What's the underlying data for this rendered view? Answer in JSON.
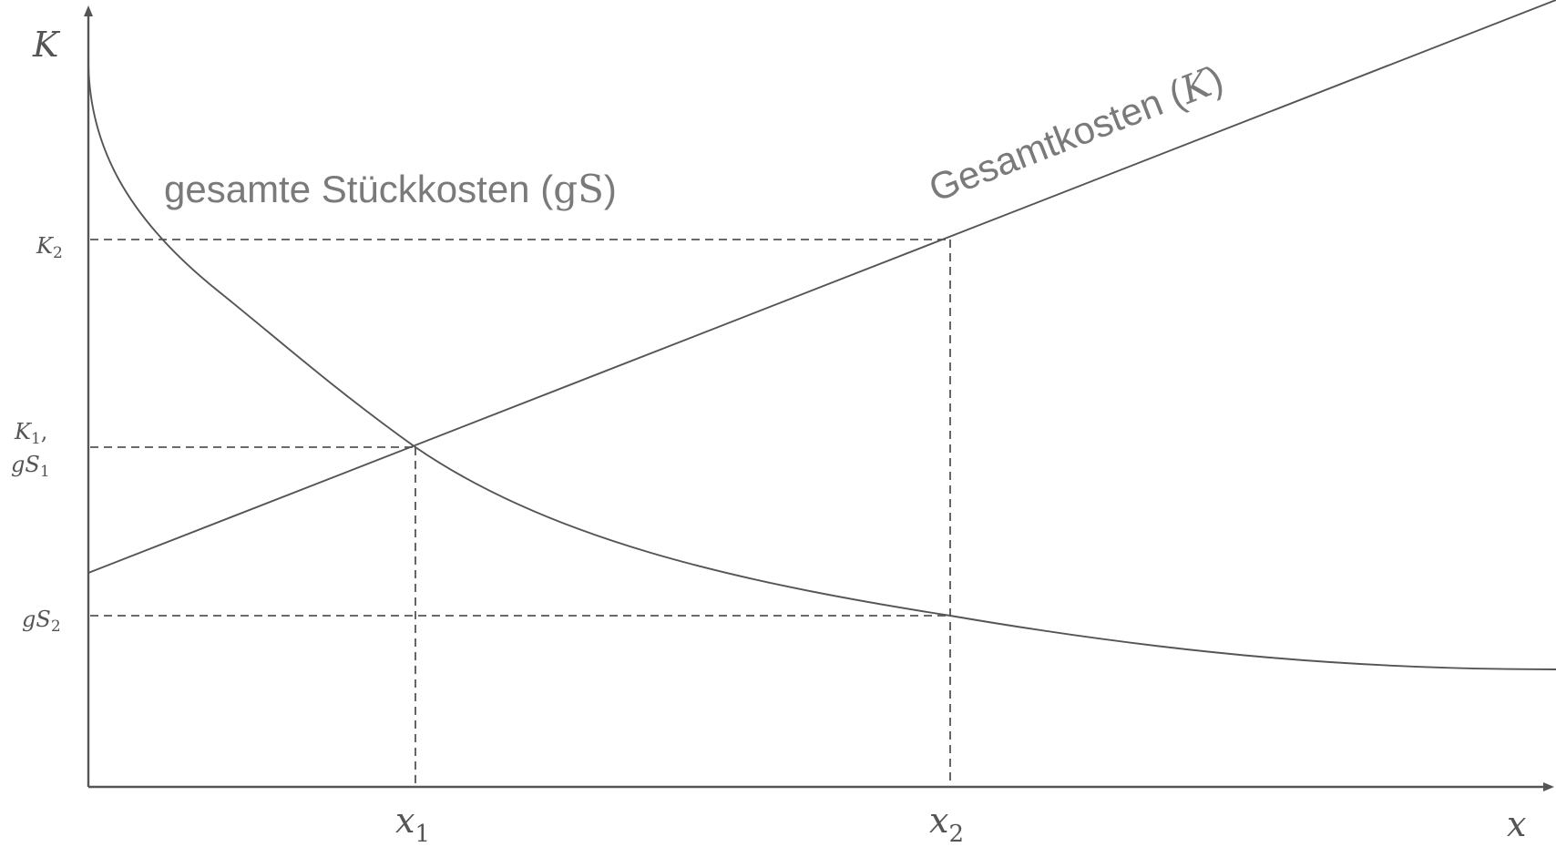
{
  "axes": {
    "y_label": "K",
    "x_label": "x"
  },
  "y_ticks": {
    "k2": {
      "base": "K",
      "sub": "2"
    },
    "k1_gs1": {
      "line1_base": "K",
      "line1_sub": "1",
      "line1_suffix": ",",
      "line2_base": "gS",
      "line2_sub": "1"
    },
    "gs2": {
      "base": "gS",
      "sub": "2"
    }
  },
  "x_ticks": {
    "x1": {
      "base": "x",
      "sub": "1"
    },
    "x2": {
      "base": "x",
      "sub": "2"
    }
  },
  "curves": {
    "unit_cost": {
      "label_text": "gesamte Stückkosten (",
      "label_symbol": "gS",
      "label_close": ")"
    },
    "total_cost": {
      "label_text": "Gesamtkosten (",
      "label_symbol": "K",
      "label_close": ")"
    }
  },
  "colors": {
    "lines": "#555555",
    "labels": "#7a7a7a"
  }
}
